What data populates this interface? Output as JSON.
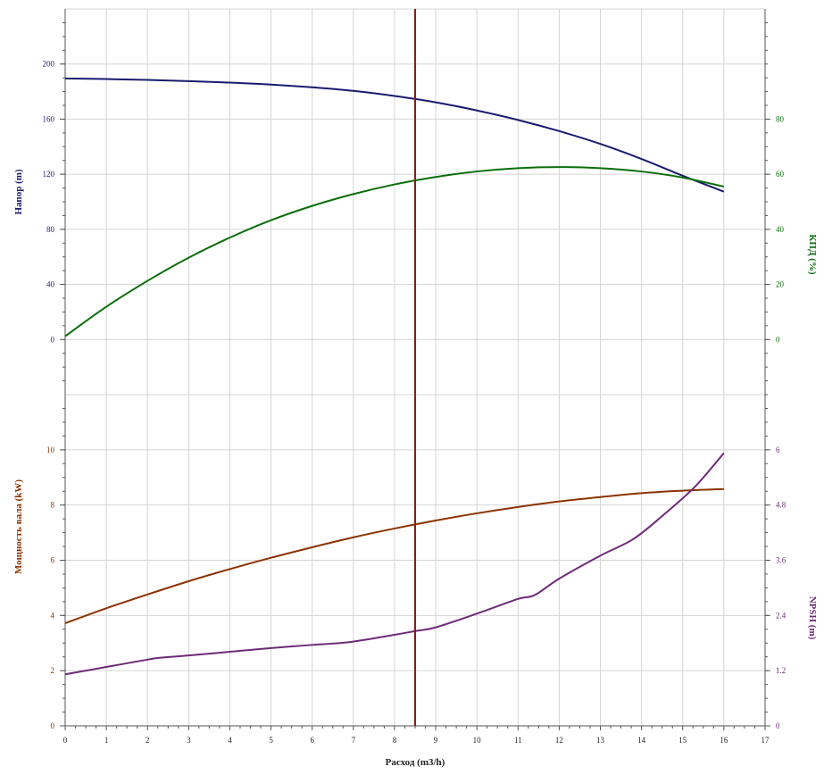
{
  "chart_data": {
    "type": "line",
    "xlabel": "Расход (m3/h)",
    "xlim": [
      0,
      17
    ],
    "x_ticks": [
      "0",
      "1",
      "2",
      "3",
      "4",
      "5",
      "6",
      "7",
      "8",
      "9",
      "10",
      "11",
      "12",
      "13",
      "14",
      "15",
      "16",
      "17"
    ],
    "grid": true,
    "legend": "none",
    "duty_point_x": 8.5,
    "colors": {
      "head": "#1a1a6e",
      "efficiency": "#0a6e0a",
      "power": "#8b3300",
      "npsh": "#6e2a78",
      "duty_line": "#8b1a1a",
      "grid": "#d4d4d4",
      "axis": "#555555"
    },
    "top_panel": {
      "left_axis": {
        "label": "Напор (m)",
        "ylim": [
          -40,
          240
        ],
        "ticks": [
          "0",
          "40",
          "80",
          "120",
          "160",
          "200"
        ],
        "tick_values": [
          0,
          40,
          80,
          120,
          160,
          200
        ]
      },
      "right_axis": {
        "label": "КПД (%)",
        "ylim": [
          -20,
          120
        ],
        "ticks": [
          "0",
          "20",
          "40",
          "60",
          "80"
        ],
        "tick_values": [
          0,
          20,
          40,
          60,
          80
        ]
      }
    },
    "bottom_panel": {
      "left_axis": {
        "label": "Мощность вала (kW)",
        "ylim": [
          0,
          12
        ],
        "ticks": [
          "0",
          "2",
          "4",
          "6",
          "8",
          "10"
        ],
        "tick_values": [
          0,
          2,
          4,
          6,
          8,
          10
        ]
      },
      "right_axis": {
        "label": "NPSH (m)",
        "ylim": [
          0,
          7.2
        ],
        "ticks": [
          "0",
          "1.2",
          "2.4",
          "3.6",
          "4.8",
          "6"
        ],
        "tick_values": [
          0,
          1.2,
          2.4,
          3.6,
          4.8,
          6
        ]
      }
    },
    "series": [
      {
        "key": "head",
        "panel": "top",
        "axis": "left",
        "x": [
          0,
          1,
          2,
          3,
          4,
          5,
          6,
          7,
          8,
          9,
          10,
          11,
          12,
          13,
          14,
          15,
          16
        ],
        "values": [
          189.5,
          189.1,
          188.5,
          187.6,
          186.5,
          185.1,
          183.1,
          180.5,
          176.8,
          172.2,
          166.3,
          159.4,
          151.3,
          142.0,
          131.1,
          118.9,
          107.3
        ]
      },
      {
        "key": "efficiency",
        "panel": "top",
        "axis": "right",
        "x": [
          0,
          1,
          2,
          3,
          4,
          5,
          6,
          7,
          8,
          9,
          10,
          11,
          12,
          13,
          14,
          15,
          16
        ],
        "values": [
          1.2,
          11.9,
          21.3,
          29.7,
          37.0,
          43.3,
          48.5,
          52.8,
          56.3,
          59.0,
          61.0,
          62.2,
          62.6,
          62.2,
          61.0,
          58.8,
          55.5
        ]
      },
      {
        "key": "power",
        "panel": "bottom",
        "axis": "left",
        "x": [
          0,
          1,
          2,
          3,
          4,
          5,
          6,
          7,
          8,
          9,
          10,
          11,
          12,
          13,
          14,
          15,
          16
        ],
        "values": [
          3.72,
          4.26,
          4.76,
          5.24,
          5.68,
          6.09,
          6.47,
          6.83,
          7.15,
          7.44,
          7.7,
          7.93,
          8.13,
          8.29,
          8.43,
          8.52,
          8.58
        ]
      },
      {
        "key": "npsh",
        "panel": "bottom",
        "axis": "right",
        "x": [
          0,
          1,
          2,
          2.3,
          3,
          4,
          5,
          6,
          6.9,
          8,
          8.5,
          9,
          10,
          11,
          11.4,
          12,
          13,
          13.8,
          14.5,
          15.3,
          16
        ],
        "values": [
          1.12,
          1.28,
          1.44,
          1.48,
          1.53,
          1.61,
          1.69,
          1.76,
          1.82,
          1.98,
          2.06,
          2.14,
          2.44,
          2.76,
          2.84,
          3.2,
          3.7,
          4.06,
          4.56,
          5.2,
          5.93
        ]
      }
    ]
  }
}
